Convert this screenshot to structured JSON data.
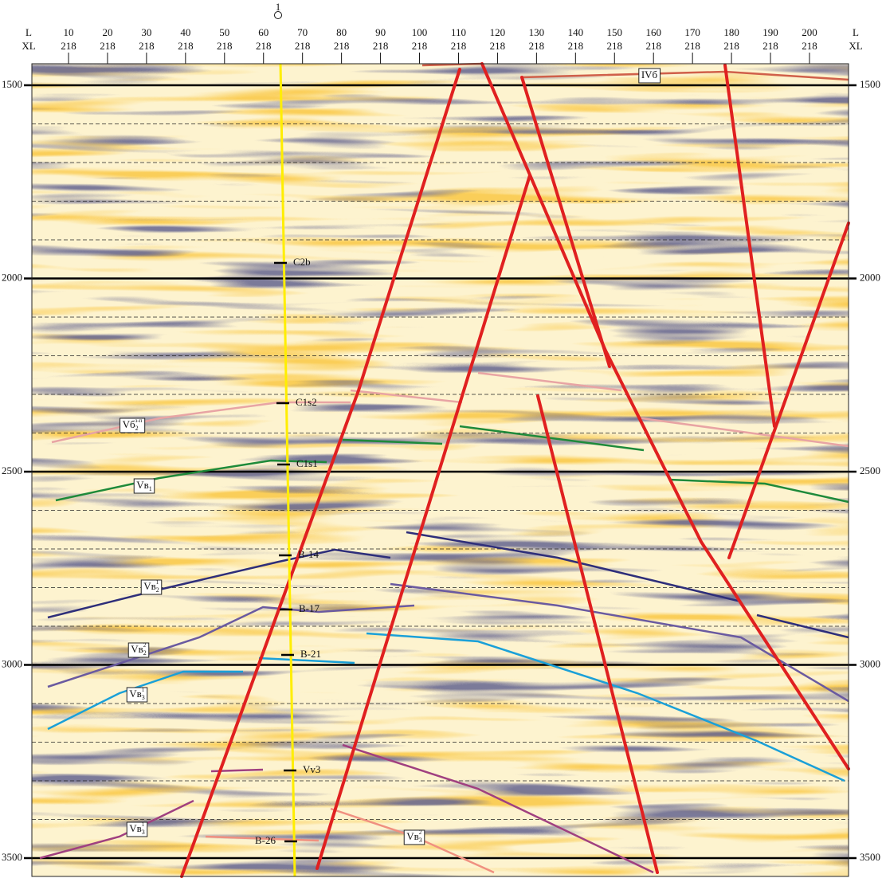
{
  "well": {
    "label": "1"
  },
  "axis_top": {
    "row_labels": [
      "L",
      "XL"
    ],
    "ticks": [
      {
        "top": 10,
        "bottom": 218
      },
      {
        "top": 20,
        "bottom": 218
      },
      {
        "top": 30,
        "bottom": 218
      },
      {
        "top": 40,
        "bottom": 218
      },
      {
        "top": 50,
        "bottom": 218
      },
      {
        "top": 60,
        "bottom": 218
      },
      {
        "top": 70,
        "bottom": 218
      },
      {
        "top": 80,
        "bottom": 218
      },
      {
        "top": 90,
        "bottom": 218
      },
      {
        "top": 100,
        "bottom": 218
      },
      {
        "top": 110,
        "bottom": 218
      },
      {
        "top": 120,
        "bottom": 218
      },
      {
        "top": 130,
        "bottom": 218
      },
      {
        "top": 140,
        "bottom": 218
      },
      {
        "top": 150,
        "bottom": 218
      },
      {
        "top": 160,
        "bottom": 218
      },
      {
        "top": 170,
        "bottom": 218
      },
      {
        "top": 180,
        "bottom": 218
      },
      {
        "top": 190,
        "bottom": 218
      },
      {
        "top": 200,
        "bottom": 218
      }
    ]
  },
  "depth_axis": {
    "ticks": [
      1500,
      2000,
      2500,
      3000,
      3500
    ]
  },
  "well_markers": [
    "C2b",
    "C1s2",
    "C1s1",
    "В-14",
    "В-17",
    "В-21",
    "Vv3",
    "В-26"
  ],
  "horizon_labels": [
    {
      "text": "IVб"
    },
    {
      "text": "Vб",
      "sub": "2",
      "sup": "з-п"
    },
    {
      "text": "Vв",
      "sub": "1"
    },
    {
      "text": "Vв",
      "sub": "2",
      "sup": "1"
    },
    {
      "text": "Vв",
      "sub": "2",
      "sup": "2"
    },
    {
      "text": "Vв",
      "sub": "3",
      "sup": "1"
    },
    {
      "text": "Vв",
      "sub": "3",
      "sup": "1"
    },
    {
      "text": "Vв",
      "sub": "3",
      "sup": "2"
    }
  ]
}
